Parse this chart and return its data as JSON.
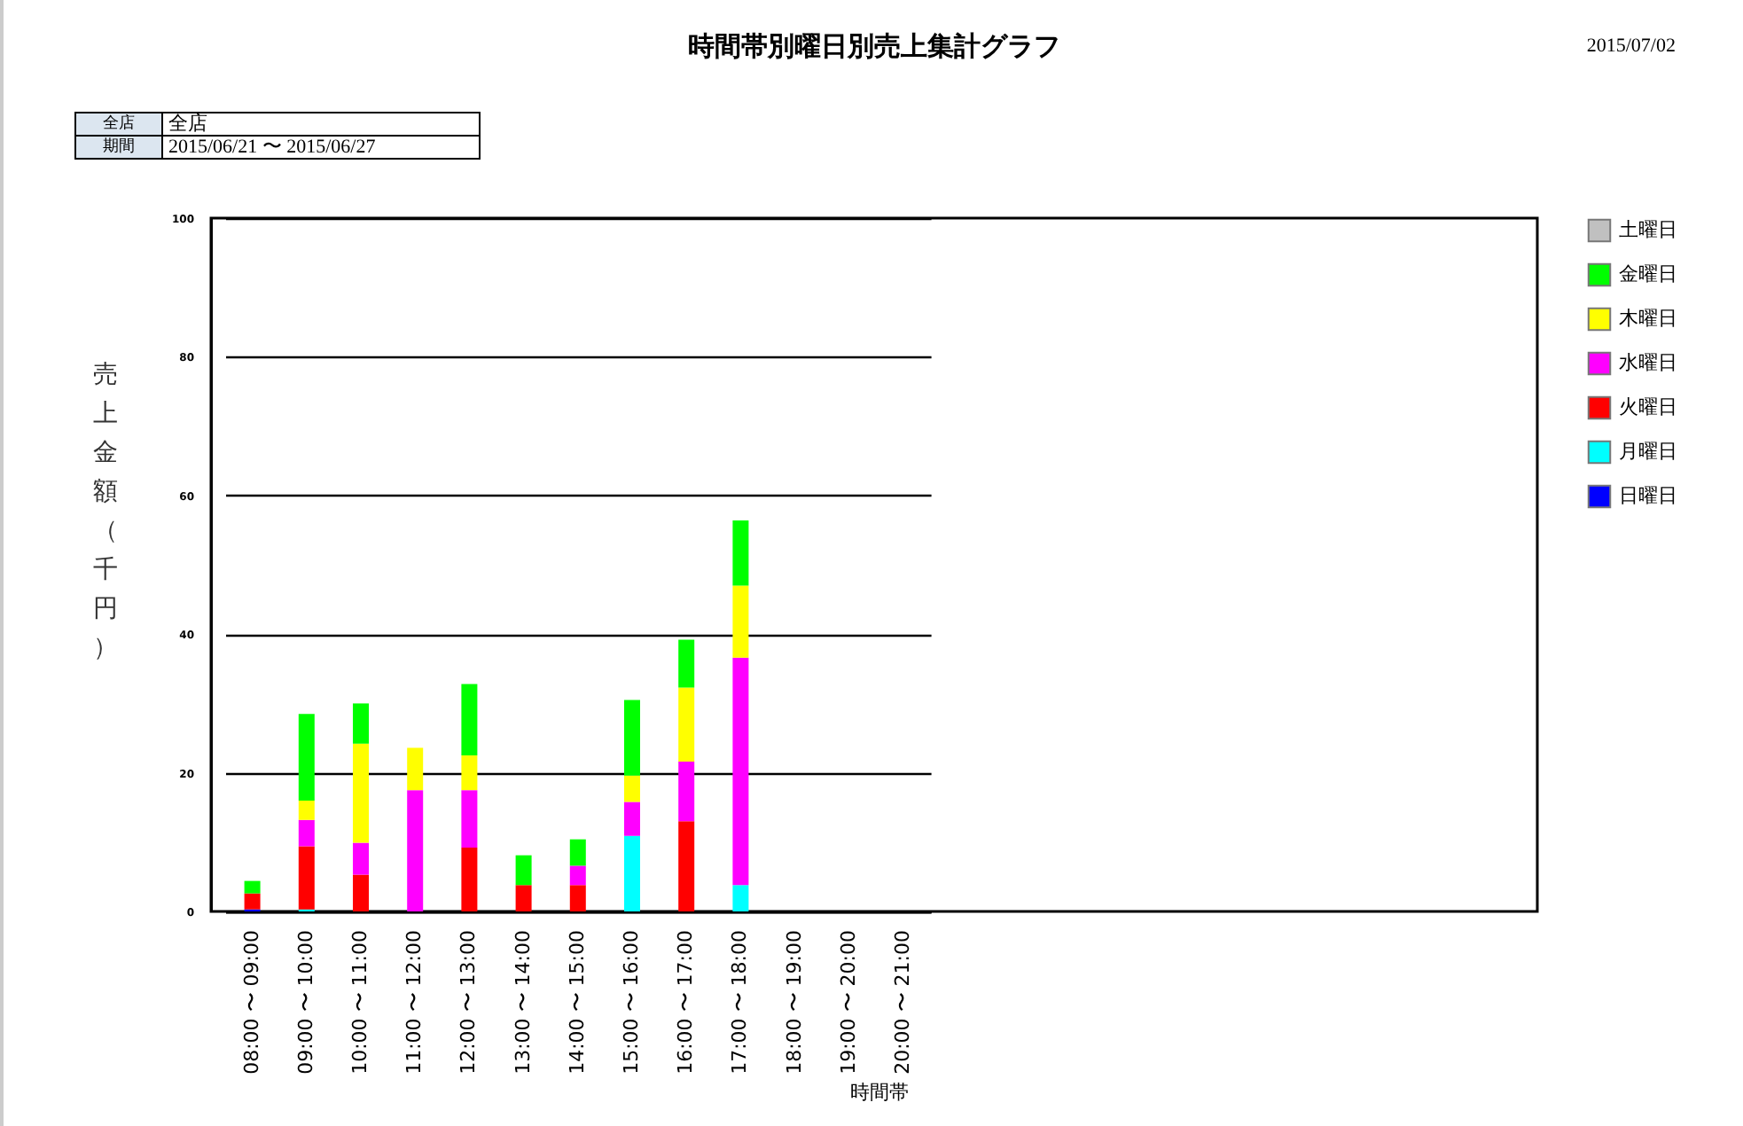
{
  "chart_data": {
    "type": "bar",
    "stacked": true,
    "title": "時間帯別曜日別売上集計グラフ",
    "xlabel": "時間帯",
    "ylabel": "売上金額（千円）",
    "annotations": [
      "全店",
      "全店",
      "期間",
      "2015/06/21 〜 2015/06/27",
      "2015/07/02"
    ],
    "categories": [
      "08:00 〜 09:00",
      "09:00 〜 10:00",
      "10:00 〜 11:00",
      "11:00 〜 12:00",
      "12:00 〜 13:00",
      "13:00 〜 14:00",
      "14:00 〜 15:00",
      "15:00 〜 16:00",
      "16:00 〜 17:00",
      "17:00 〜 18:00",
      "18:00 〜 19:00",
      "19:00 〜 20:00",
      "20:00 〜 21:00"
    ],
    "series": [
      {
        "name": "日曜日",
        "color": "#0000ff",
        "values": [
          0.3,
          null,
          null,
          null,
          null,
          null,
          null,
          null,
          null,
          null,
          null,
          null,
          null
        ]
      },
      {
        "name": "月曜日",
        "color": "#00ffff",
        "values": [
          null,
          0.3,
          null,
          null,
          null,
          null,
          null,
          10.9,
          null,
          3.8,
          null,
          null,
          null
        ]
      },
      {
        "name": "火曜日",
        "color": "#ff0000",
        "values": [
          2.3,
          9.1,
          5.3,
          null,
          9.2,
          3.8,
          3.8,
          null,
          13.0,
          null,
          null,
          null,
          null
        ]
      },
      {
        "name": "水曜日",
        "color": "#ff00ff",
        "values": [
          null,
          3.8,
          4.6,
          17.5,
          8.3,
          null,
          2.8,
          4.9,
          8.6,
          32.8,
          null,
          null,
          null
        ]
      },
      {
        "name": "木曜日",
        "color": "#ffff00",
        "values": [
          null,
          2.8,
          14.3,
          6.1,
          5.0,
          null,
          null,
          3.8,
          10.7,
          10.4,
          null,
          null,
          null
        ]
      },
      {
        "name": "金曜日",
        "color": "#00ff00",
        "values": [
          1.8,
          12.5,
          5.8,
          null,
          10.3,
          4.3,
          3.8,
          10.9,
          6.9,
          9.4,
          null,
          null,
          null
        ]
      },
      {
        "name": "土曜日",
        "color": "#c0c0c0",
        "values": [
          null,
          null,
          null,
          null,
          null,
          null,
          null,
          null,
          null,
          null,
          null,
          null,
          null
        ]
      }
    ],
    "ylim": [
      0,
      100
    ],
    "yticks": [
      0,
      20,
      40,
      60,
      80,
      100
    ],
    "grid": "y",
    "legend": "right"
  }
}
